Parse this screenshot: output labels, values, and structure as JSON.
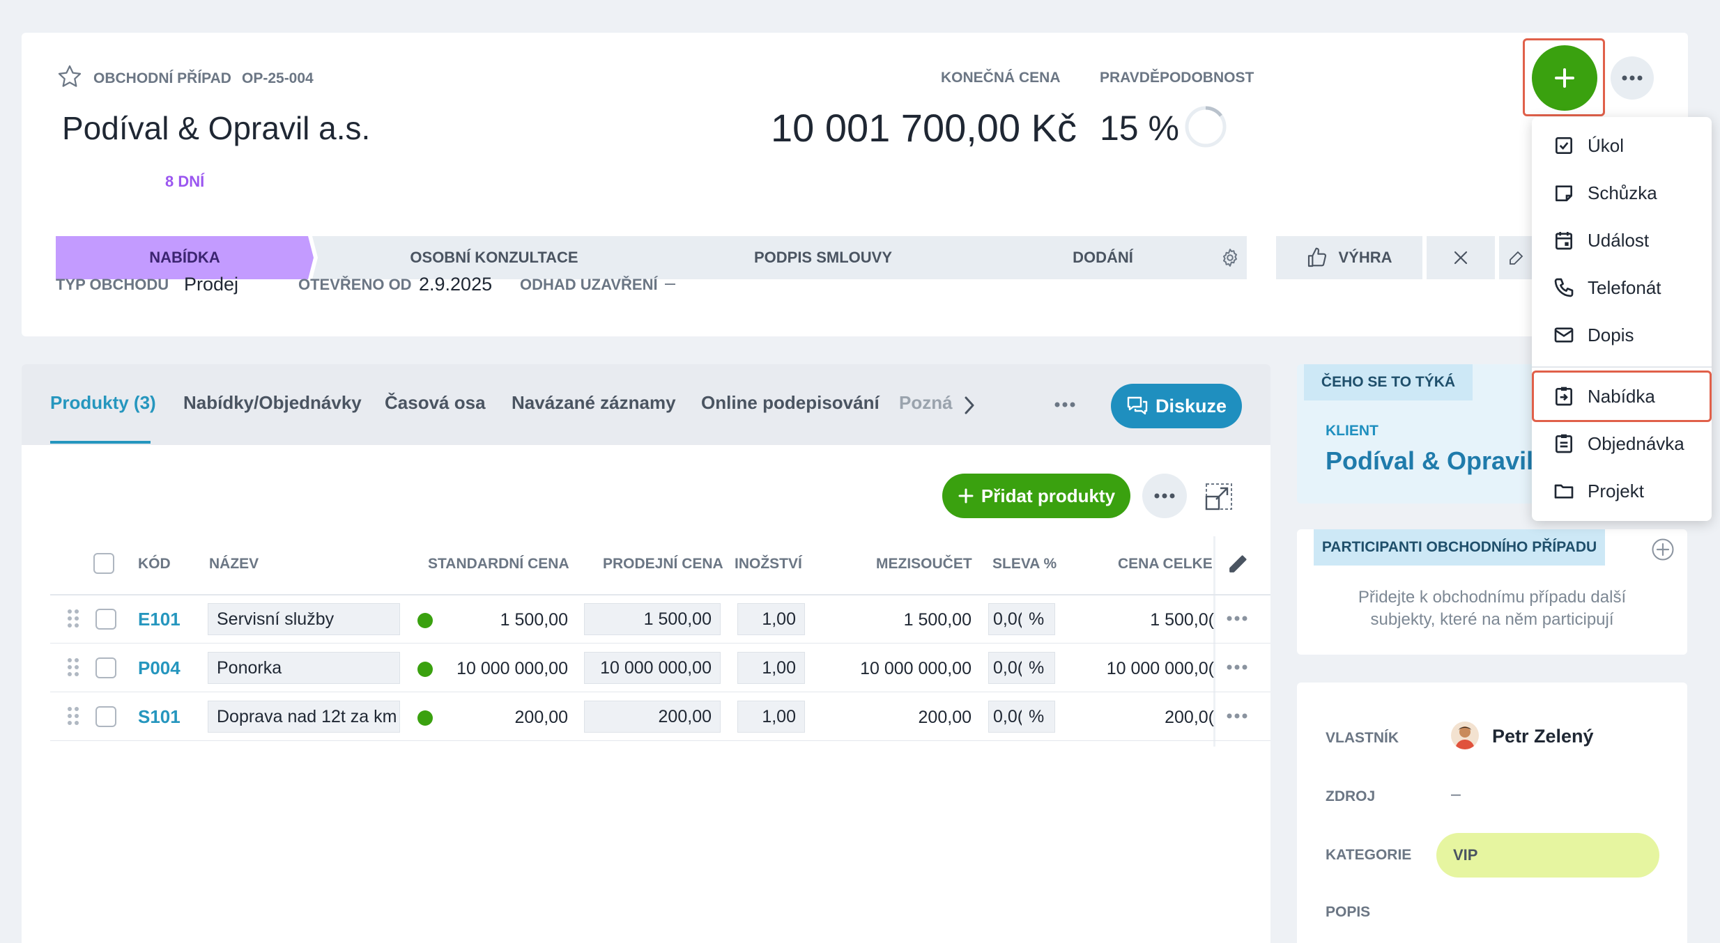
{
  "deal": {
    "type_label": "OBCHODNÍ PŘÍPAD",
    "id": "OP-25-004",
    "title": "Podíval & Opravil a.s.",
    "final_price_label": "KONEČNÁ CENA",
    "final_price": "10 001 700,00 Kč",
    "probability_label": "PRAVDĚPODOBNOST",
    "probability": "15 %",
    "probability_value": 15,
    "days_label": "8 DNÍ"
  },
  "stages": [
    {
      "label": "NABÍDKA",
      "active": true
    },
    {
      "label": "OSOBNÍ KONZULTACE",
      "active": false
    },
    {
      "label": "PODPIS SMLOUVY",
      "active": false
    },
    {
      "label": "DODÁNÍ",
      "active": false
    }
  ],
  "actions": {
    "win_label": "VÝHRA"
  },
  "meta": {
    "deal_type_label": "TYP OBCHODU",
    "deal_type": "Prodej",
    "opened_label": "OTEVŘENO OD",
    "opened": "2.9.2025",
    "close_estimate_label": "ODHAD UZAVŘENÍ",
    "close_estimate": "–"
  },
  "tabs": [
    "Produkty (3)",
    "Nabídky/Objednávky",
    "Časová osa",
    "Navázané záznamy",
    "Online podepisování",
    "Pozná"
  ],
  "discuss_label": "Diskuze",
  "add_products_label": "Přidat produkty",
  "table": {
    "headers": [
      "KÓD",
      "NÁZEV",
      "STANDARDNÍ CENA",
      "PRODEJNÍ CENA",
      "INOŽSTVÍ",
      "MEZISOUČET",
      "SLEVA %",
      "CENA CELKEM"
    ],
    "rows": [
      {
        "code": "E101",
        "name": "Servisní služby",
        "std_price": "1 500,00",
        "sale_price": "1 500,00",
        "qty": "1,00",
        "subtotal": "1 500,00",
        "discount": "0,0(",
        "discount_unit": "%",
        "total": "1 500,0("
      },
      {
        "code": "P004",
        "name": "Ponorka",
        "std_price": "10 000 000,00",
        "sale_price": "10 000 000,00",
        "qty": "1,00",
        "subtotal": "10 000 000,00",
        "discount": "0,0(",
        "discount_unit": "%",
        "total": "10 000 000,0("
      },
      {
        "code": "S101",
        "name": "Doprava nad 12t za km",
        "std_price": "200,00",
        "sale_price": "200,00",
        "qty": "1,00",
        "subtotal": "200,00",
        "discount": "0,0(",
        "discount_unit": "%",
        "total": "200,0("
      }
    ]
  },
  "about": {
    "title": "ČEHO SE TO TÝKÁ",
    "client_label": "KLIENT",
    "client": "Podíval & Opravil a"
  },
  "participants": {
    "title": "PARTICIPANTI OBCHODNÍHO PŘÍPADU",
    "empty_text_1": "Přidejte k obchodnímu případu další",
    "empty_text_2": "subjekty, které na něm participují"
  },
  "details": {
    "owner_label": "VLASTNÍK",
    "owner": "Petr Zelený",
    "source_label": "ZDROJ",
    "source": "–",
    "category_label": "KATEGORIE",
    "category": "VIP",
    "description_label": "POPIS"
  },
  "menu": [
    {
      "label": "Úkol",
      "icon": "task-icon"
    },
    {
      "label": "Schůzka",
      "icon": "meeting-icon"
    },
    {
      "label": "Událost",
      "icon": "event-icon"
    },
    {
      "label": "Telefonát",
      "icon": "phone-icon"
    },
    {
      "label": "Dopis",
      "icon": "letter-icon"
    },
    {
      "label": "Nabídka",
      "icon": "offer-icon",
      "highlighted": true
    },
    {
      "label": "Objednávka",
      "icon": "order-icon"
    },
    {
      "label": "Projekt",
      "icon": "folder-icon"
    }
  ],
  "colors": {
    "accent_blue": "#2596be",
    "green": "#3aa10f",
    "active_stage": "#c39bff",
    "highlight_red": "#e0604a",
    "vip": "#e6f5a0"
  }
}
